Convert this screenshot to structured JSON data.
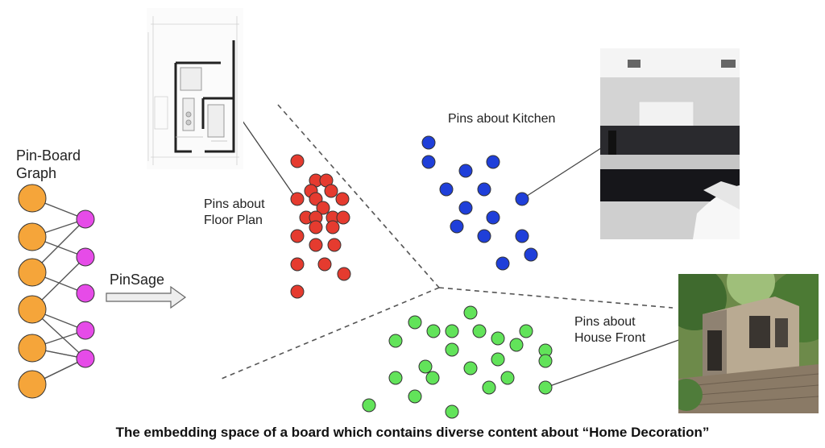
{
  "graph": {
    "title": "Pin-Board\nGraph",
    "colors": {
      "pin_node": "#f5a53a",
      "board_node": "#e64be8"
    },
    "edges": [
      [
        0,
        0
      ],
      [
        1,
        0
      ],
      [
        1,
        1
      ],
      [
        2,
        0
      ],
      [
        2,
        2
      ],
      [
        3,
        1
      ],
      [
        3,
        3
      ],
      [
        3,
        4
      ],
      [
        4,
        3
      ],
      [
        4,
        4
      ],
      [
        4,
        5
      ],
      [
        5,
        4
      ],
      [
        5,
        5
      ]
    ]
  },
  "arrow": {
    "label": "PinSage"
  },
  "clusters": {
    "floor_plan": {
      "label": "Pins about\nFloor Plan",
      "color": "#e53b2f"
    },
    "kitchen": {
      "label": "Pins about Kitchen",
      "color": "#1f3fd9"
    },
    "house_front": {
      "label": "Pins about\nHouse Front",
      "color": "#62e35a"
    }
  },
  "images": {
    "floor_plan": "floor-plan",
    "kitchen": "kitchen-photo",
    "house_front": "house-photo"
  },
  "caption": "The embedding space of a board which contains diverse content about “Home Decoration”"
}
